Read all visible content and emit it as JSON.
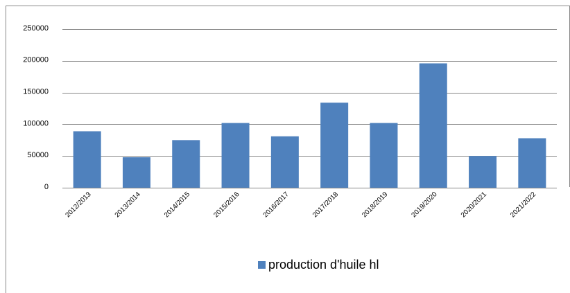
{
  "chart_data": {
    "type": "bar",
    "categories": [
      "2012/2013",
      "2013/2014",
      "2014/2015",
      "2015/2016",
      "2016/2017",
      "2017/2018",
      "2018/2019",
      "2019/2020",
      "2020/2021",
      "2021/2022"
    ],
    "series": [
      {
        "name": "production d'huile hl",
        "color": "#4f81bd",
        "values": [
          89000,
          48000,
          75000,
          102000,
          81000,
          134000,
          102000,
          196000,
          50000,
          78000
        ]
      }
    ],
    "ylim": [
      0,
      250000
    ],
    "yticks": [
      0,
      50000,
      100000,
      150000,
      200000,
      250000
    ],
    "grid": true,
    "legend": "bottom"
  }
}
